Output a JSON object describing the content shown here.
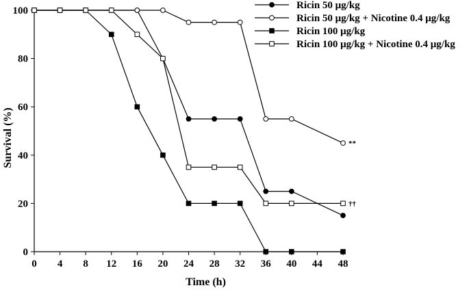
{
  "chart_data": {
    "type": "line",
    "xlabel": "Time (h)",
    "ylabel": "Survival (%)",
    "xlim": [
      0,
      48
    ],
    "ylim": [
      0,
      100
    ],
    "xticks": [
      0,
      4,
      8,
      12,
      16,
      20,
      24,
      28,
      32,
      36,
      40,
      44,
      48
    ],
    "yticks": [
      0,
      20,
      40,
      60,
      80,
      100
    ],
    "grid": false,
    "legend_position": "top-right",
    "series": [
      {
        "name": "Ricin 50 μg/kg",
        "marker": "circle",
        "fill": "filled",
        "x": [
          0,
          4,
          8,
          12,
          16,
          20,
          24,
          28,
          32,
          36,
          40,
          48
        ],
        "y": [
          100,
          100,
          100,
          100,
          100,
          80,
          55,
          55,
          55,
          25,
          25,
          15
        ]
      },
      {
        "name": "Ricin 50 μg/kg + Nicotine 0.4 μg/kg",
        "marker": "circle",
        "fill": "open",
        "x": [
          0,
          4,
          8,
          12,
          16,
          20,
          24,
          28,
          32,
          36,
          40,
          48
        ],
        "y": [
          100,
          100,
          100,
          100,
          100,
          100,
          95,
          95,
          95,
          55,
          55,
          45
        ],
        "end_annotation": "**"
      },
      {
        "name": "Ricin 100 μg/kg",
        "marker": "square",
        "fill": "filled",
        "x": [
          0,
          4,
          8,
          12,
          16,
          20,
          24,
          28,
          32,
          36,
          40,
          48
        ],
        "y": [
          100,
          100,
          100,
          90,
          60,
          40,
          20,
          20,
          20,
          0,
          0,
          0
        ]
      },
      {
        "name": "Ricin 100 μg/kg + Nicotine 0.4 μg/kg",
        "marker": "square",
        "fill": "open",
        "x": [
          0,
          4,
          8,
          12,
          16,
          20,
          24,
          28,
          32,
          36,
          40,
          48
        ],
        "y": [
          100,
          100,
          100,
          100,
          90,
          80,
          35,
          35,
          35,
          20,
          20,
          20
        ],
        "end_annotation": "††"
      }
    ]
  }
}
